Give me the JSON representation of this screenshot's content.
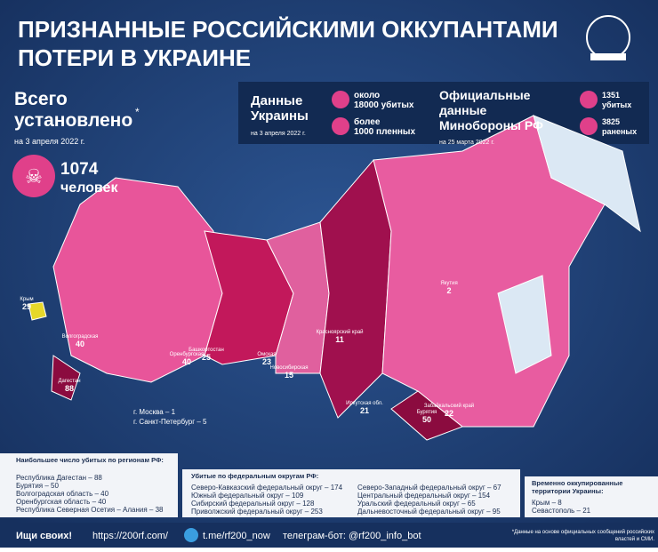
{
  "header": {
    "title_lines": [
      "ПРИЗНАННЫЕ РОССИЙСКИМИ ОККУПАНТАМИ",
      "ПОТЕРИ В УКРАИНЕ"
    ]
  },
  "total": {
    "label_lines": [
      "Всего",
      "установлено"
    ],
    "asterisk": "*",
    "date": "на 3 апреля 2022 г.",
    "count": "1074",
    "unit": "человек"
  },
  "ukraine": {
    "title_lines": [
      "Данные",
      "Украины"
    ],
    "date": "на 3 апреля 2022 г.",
    "items": [
      [
        "около",
        "18000 убитых"
      ],
      [
        "более",
        "1000 пленных"
      ]
    ]
  },
  "russia": {
    "title_lines": [
      "Официальные",
      "данные",
      "Минобороны РФ"
    ],
    "date": "на 25 марта 2022 г.",
    "items": [
      [
        "1351",
        "убитых"
      ],
      [
        "3825",
        "раненых"
      ]
    ]
  },
  "map_labels": [
    {
      "name": "Бурятия",
      "value": "50"
    },
    {
      "name": "Красноярский край",
      "value": "11"
    },
    {
      "name": "Иркутская обл.",
      "value": "21"
    },
    {
      "name": "Забайкальский край",
      "value": "22"
    },
    {
      "name": "Якутия",
      "value": "2"
    },
    {
      "name": "Дагестан",
      "value": "88"
    },
    {
      "name": "Крым",
      "value": "29"
    },
    {
      "name": "Башкортостан",
      "value": "25"
    },
    {
      "name": "Оренбургская",
      "value": "40"
    },
    {
      "name": "Волгоградская",
      "value": "40"
    },
    {
      "name": "Новосибирская",
      "value": "15"
    },
    {
      "name": "Омская",
      "value": "23"
    }
  ],
  "cities": [
    "г. Москва – 1",
    "г. Санкт-Петербург – 5"
  ],
  "regions": {
    "title": "Наибольшее число убитых по регионам РФ:",
    "items": [
      "Республика Дагестан – 88",
      "Бурятия – 50",
      "Волгоградская область – 40",
      "Оренбургская область – 40",
      "Республика Северная Осетия – Алания – 38"
    ]
  },
  "federal": {
    "title": "Убитые по федеральным округам РФ:",
    "items": [
      "Северо-Кавказский федеральный округ – 174",
      "Южный федеральный округ – 109",
      "Сибирский федеральный округ – 128",
      "Приволжский федеральный округ – 253",
      "Северо-Западный федеральный округ – 67",
      "Центральный федеральный округ – 154",
      "Уральский федеральный округ – 65",
      "Дальневосточный федеральный округ – 95"
    ]
  },
  "occupied": {
    "title_lines": [
      "Временно оккупированные",
      "территории Украины:"
    ],
    "items": [
      "Крым – 8",
      "Севастополь – 21"
    ]
  },
  "footer": {
    "slogan": "Ищи своих!",
    "site": "https://200rf.com/",
    "telegram": "t.me/rf200_now",
    "bot": "телеграм-бот: @rf200_info_bot",
    "note_lines": [
      "*Данные на основе официальных сообщений российских",
      "властей и СМИ."
    ]
  }
}
